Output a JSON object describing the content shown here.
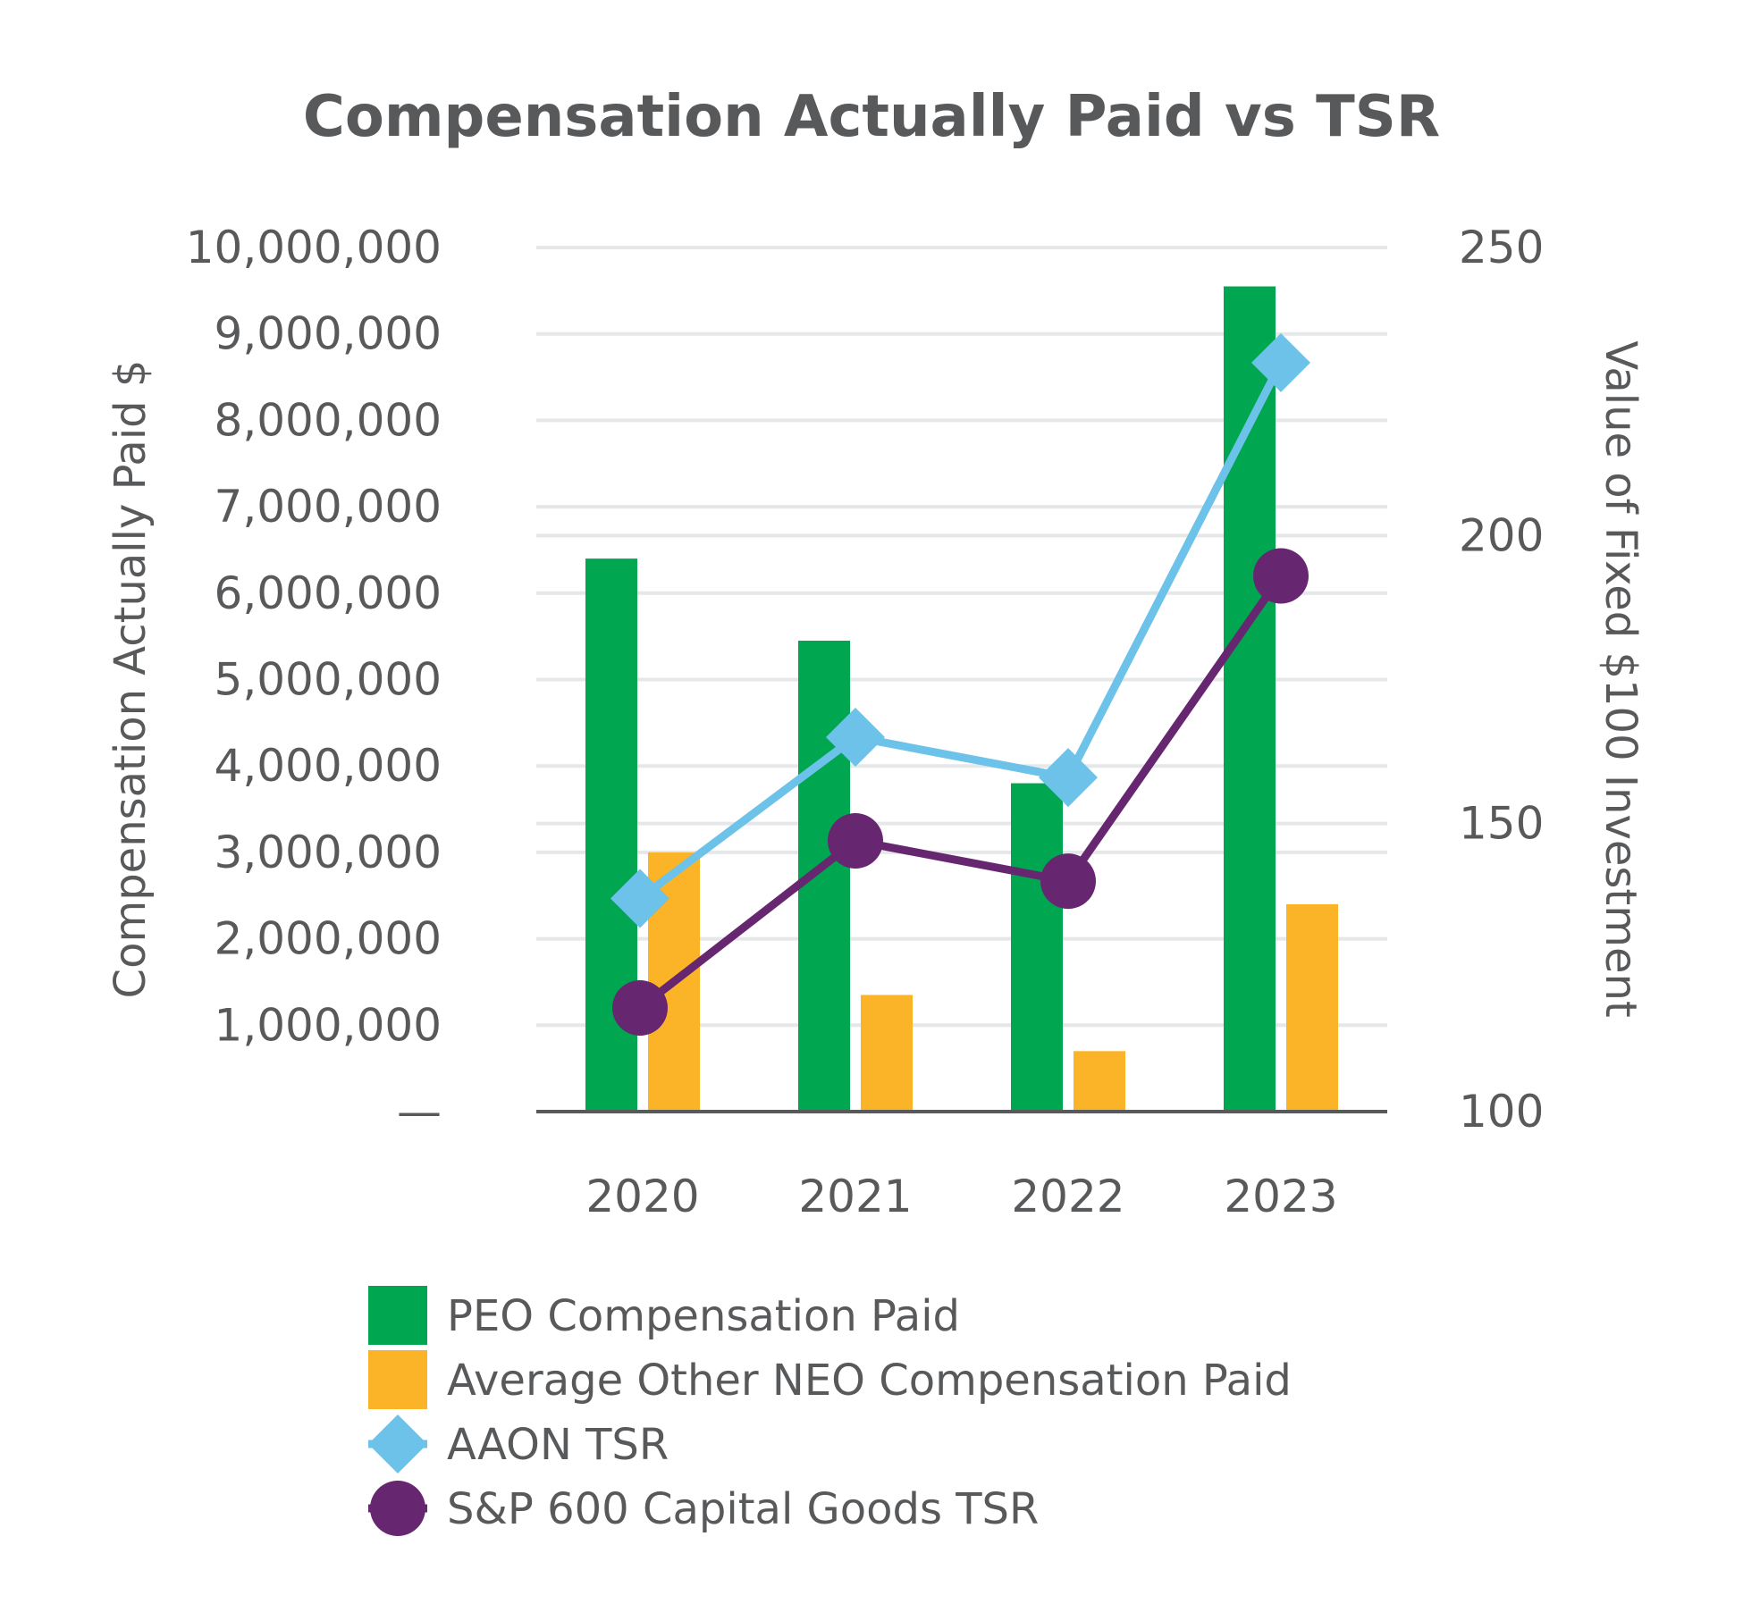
{
  "chart_data": {
    "type": "bar",
    "title": "Compensation Actually Paid vs TSR",
    "categories": [
      "2020",
      "2021",
      "2022",
      "2023"
    ],
    "ylabel": "Compensation Actually Paid $",
    "y2label": "Value of Fixed $100 Investment",
    "ylim": [
      0,
      10000000
    ],
    "y2lim": [
      100,
      250
    ],
    "yticks": [
      {
        "value": 0,
        "label": "—"
      },
      {
        "value": 1000000,
        "label": "1,000,000"
      },
      {
        "value": 2000000,
        "label": "2,000,000"
      },
      {
        "value": 3000000,
        "label": "3,000,000"
      },
      {
        "value": 4000000,
        "label": "4,000,000"
      },
      {
        "value": 5000000,
        "label": "5,000,000"
      },
      {
        "value": 6000000,
        "label": "6,000,000"
      },
      {
        "value": 7000000,
        "label": "7,000,000"
      },
      {
        "value": 8000000,
        "label": "8,000,000"
      },
      {
        "value": 9000000,
        "label": "9,000,000"
      },
      {
        "value": 10000000,
        "label": "10,000,000"
      }
    ],
    "y2ticks": [
      {
        "value": 100,
        "label": "100"
      },
      {
        "value": 150,
        "label": "150"
      },
      {
        "value": 200,
        "label": "200"
      },
      {
        "value": 250,
        "label": "250"
      }
    ],
    "series": [
      {
        "name": "PEO Compensation Paid",
        "kind": "bar",
        "axis": "left",
        "color": "#00a650",
        "values": [
          6400000,
          5450000,
          3800000,
          9550000
        ]
      },
      {
        "name": "Average Other NEO Compensation Paid",
        "kind": "bar",
        "axis": "left",
        "color": "#fbb428",
        "values": [
          3000000,
          1350000,
          700000,
          2400000
        ]
      },
      {
        "name": "AAON TSR",
        "kind": "line",
        "marker": "diamond",
        "axis": "right",
        "color": "#6cc2e8",
        "values": [
          137,
          165,
          158,
          230
        ]
      },
      {
        "name": "S&P 600 Capital Goods TSR",
        "kind": "line",
        "marker": "circle",
        "axis": "right",
        "color": "#672670",
        "values": [
          118,
          147,
          140,
          193
        ]
      }
    ],
    "legend_position": "bottom",
    "grid": true
  }
}
